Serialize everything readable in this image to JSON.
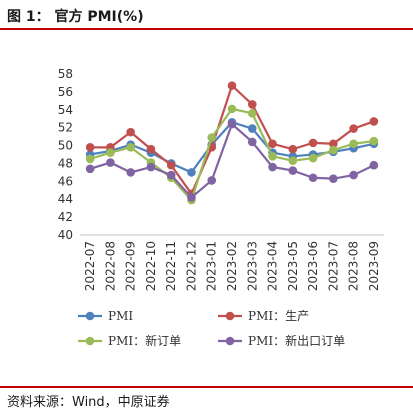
{
  "header": {
    "title": "图 1： 官方 PMI(%)"
  },
  "footer": {
    "source": "资料来源：Wind，中原证券"
  },
  "chart_data": {
    "type": "line",
    "title": "官方 PMI(%)",
    "xlabel": "",
    "ylabel": "",
    "ylim": [
      40,
      58
    ],
    "yticks": [
      40,
      42,
      44,
      46,
      48,
      50,
      52,
      54,
      56,
      58
    ],
    "categories": [
      "2022-07",
      "2022-08",
      "2022-09",
      "2022-10",
      "2022-11",
      "2022-12",
      "2023-01",
      "2023-02",
      "2023-03",
      "2023-04",
      "2023-05",
      "2023-06",
      "2023-07",
      "2023-08",
      "2023-09"
    ],
    "grid": false,
    "legend_position": "bottom",
    "series": [
      {
        "name": "PMI",
        "color": "#4f81bd",
        "values": [
          49.0,
          49.4,
          50.1,
          49.2,
          48.0,
          47.0,
          50.1,
          52.6,
          51.9,
          49.2,
          48.8,
          49.0,
          49.3,
          49.7,
          50.2
        ]
      },
      {
        "name": "PMI：生产",
        "color": "#c0504d",
        "values": [
          49.8,
          49.8,
          51.5,
          49.6,
          47.8,
          44.6,
          49.8,
          56.7,
          54.6,
          50.2,
          49.6,
          50.3,
          50.2,
          51.9,
          52.7
        ]
      },
      {
        "name": "PMI：新订单",
        "color": "#9bbb59",
        "values": [
          48.5,
          49.2,
          49.8,
          48.1,
          46.4,
          43.9,
          50.9,
          54.1,
          53.6,
          48.8,
          48.3,
          48.6,
          49.5,
          50.2,
          50.5
        ]
      },
      {
        "name": "PMI：新出口订单",
        "color": "#8064a2",
        "values": [
          47.4,
          48.1,
          47.0,
          47.6,
          46.7,
          44.2,
          46.1,
          52.4,
          50.4,
          47.6,
          47.2,
          46.4,
          46.3,
          46.7,
          47.8
        ]
      }
    ]
  }
}
